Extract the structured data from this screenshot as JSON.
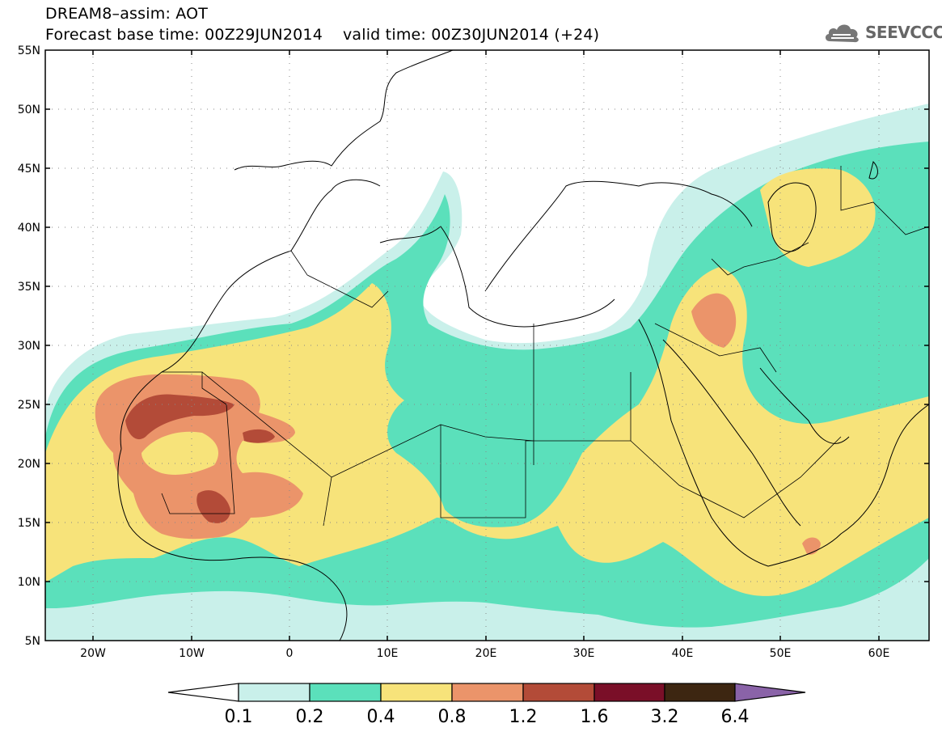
{
  "header": {
    "title": "DREAM8–assim: AOT",
    "subtitle": "Forecast base time: 00Z29JUN2014    valid time: 00Z30JUN2014 (+24)",
    "logo_text": "SEEVCCC",
    "logo_icon": "cloud-logo-icon"
  },
  "map": {
    "lon_range": [
      -25,
      65
    ],
    "lat_range": [
      5,
      55
    ],
    "lat_ticks": [
      "5N",
      "10N",
      "15N",
      "20N",
      "25N",
      "30N",
      "35N",
      "40N",
      "45N",
      "50N",
      "55N"
    ],
    "lon_ticks": [
      "20W",
      "10W",
      "0",
      "10E",
      "20E",
      "30E",
      "40E",
      "50E",
      "60E"
    ],
    "grid": "dotted"
  },
  "legend": {
    "colors": [
      "#ffffff",
      "#c9f0ea",
      "#5be0bb",
      "#f7e37a",
      "#eb946a",
      "#b34b38",
      "#7a0f28",
      "#3d2611",
      "#8a63a8"
    ],
    "labels": [
      "0.1",
      "0.2",
      "0.4",
      "0.8",
      "1.2",
      "1.6",
      "3.2",
      "6.4"
    ]
  }
}
